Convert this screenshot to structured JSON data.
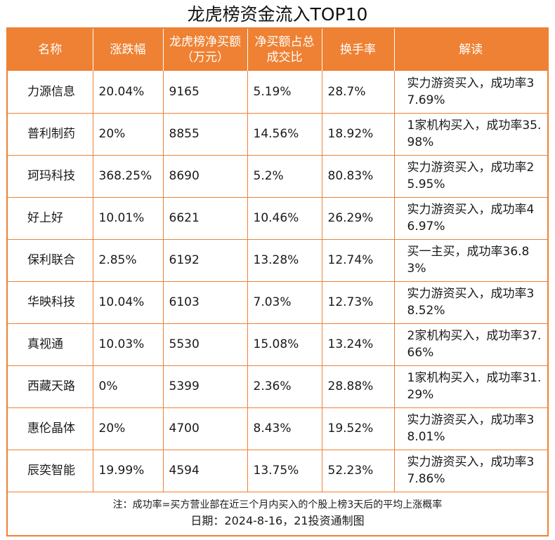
{
  "title": "龙虎榜资金流入TOP10",
  "colors": {
    "accent": "#ee8133",
    "header_text": "#ffffff"
  },
  "headers": {
    "name": "名称",
    "change": "涨跌幅",
    "net_buy": "龙虎榜净买额（万元）",
    "ratio": "净买额占总成交比",
    "turnover": "换手率",
    "interp": "解读"
  },
  "rows": [
    {
      "name": "力源信息",
      "change": "20.04%",
      "net_buy": "9165",
      "ratio": "5.19%",
      "turnover": "28.7%",
      "interp": "实力游资买入，成功率37.69%"
    },
    {
      "name": "普利制药",
      "change": "20%",
      "net_buy": "8855",
      "ratio": "14.56%",
      "turnover": "18.92%",
      "interp": "1家机构买入，成功率35.98%"
    },
    {
      "name": "珂玛科技",
      "change": "368.25%",
      "net_buy": "8690",
      "ratio": "5.2%",
      "turnover": "80.83%",
      "interp": "实力游资买入，成功率25.95%"
    },
    {
      "name": "好上好",
      "change": "10.01%",
      "net_buy": "6621",
      "ratio": "10.46%",
      "turnover": "26.29%",
      "interp": "实力游资买入，成功率46.97%"
    },
    {
      "name": "保利联合",
      "change": "2.85%",
      "net_buy": "6192",
      "ratio": "13.28%",
      "turnover": "12.74%",
      "interp": "买一主买，成功率36.83%"
    },
    {
      "name": "华映科技",
      "change": "10.04%",
      "net_buy": "6103",
      "ratio": "7.03%",
      "turnover": "12.73%",
      "interp": "实力游资买入，成功率38.52%"
    },
    {
      "name": "真视通",
      "change": "10.03%",
      "net_buy": "5530",
      "ratio": "15.08%",
      "turnover": "13.24%",
      "interp": "2家机构买入，成功率37.66%"
    },
    {
      "name": "西藏天路",
      "change": "0%",
      "net_buy": "5399",
      "ratio": "2.36%",
      "turnover": "28.88%",
      "interp": "1家机构买入，成功率31.29%"
    },
    {
      "name": "惠伦晶体",
      "change": "20%",
      "net_buy": "4700",
      "ratio": "8.43%",
      "turnover": "19.52%",
      "interp": "实力游资买入，成功率38.01%"
    },
    {
      "name": "辰奕智能",
      "change": "19.99%",
      "net_buy": "4594",
      "ratio": "13.75%",
      "turnover": "52.23%",
      "interp": "实力游资买入，成功率37.86%"
    }
  ],
  "footer": {
    "note": "注：成功率=买方营业部在近三个月内买入的个股上榜3天后的平均上涨概率",
    "date": "日期：2024-8-16，21投资通制图"
  }
}
